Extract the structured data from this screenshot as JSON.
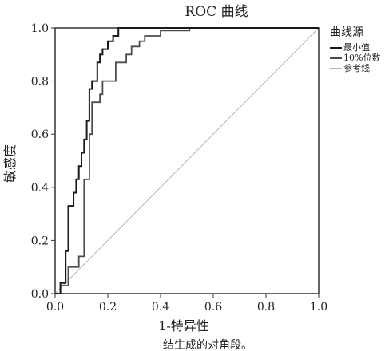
{
  "chart_data": {
    "type": "line",
    "title": "ROC 曲线",
    "xlabel": "1-特异性",
    "ylabel": "敏感度",
    "xlim": [
      0,
      1
    ],
    "ylim": [
      0,
      1
    ],
    "xticks": [
      "0.0",
      "0.2",
      "0.4",
      "0.6",
      "0.8",
      "1.0"
    ],
    "yticks": [
      "0.0",
      "0.2",
      "0.4",
      "0.6",
      "0.8",
      "1.0"
    ],
    "footnote": "结生成的对角段。",
    "legend": {
      "title": "曲线源",
      "position": "right"
    },
    "series": [
      {
        "name": "最小值",
        "color": "#1a1a1a",
        "x": [
          0.0,
          0.02,
          0.02,
          0.04,
          0.04,
          0.05,
          0.05,
          0.07,
          0.07,
          0.08,
          0.08,
          0.09,
          0.09,
          0.1,
          0.1,
          0.11,
          0.11,
          0.12,
          0.12,
          0.13,
          0.13,
          0.14,
          0.14,
          0.16,
          0.16,
          0.17,
          0.17,
          0.18,
          0.18,
          0.2,
          0.2,
          0.22,
          0.22,
          0.24,
          0.24,
          0.3,
          1.0
        ],
        "y": [
          0.0,
          0.0,
          0.04,
          0.04,
          0.16,
          0.16,
          0.33,
          0.33,
          0.38,
          0.38,
          0.43,
          0.43,
          0.48,
          0.48,
          0.53,
          0.53,
          0.58,
          0.58,
          0.65,
          0.65,
          0.77,
          0.77,
          0.8,
          0.8,
          0.87,
          0.87,
          0.9,
          0.9,
          0.92,
          0.92,
          0.95,
          0.95,
          0.97,
          0.97,
          1.0,
          1.0,
          1.0
        ]
      },
      {
        "name": "10%位数",
        "color": "#4d4d4d",
        "x": [
          0.0,
          0.02,
          0.02,
          0.05,
          0.05,
          0.09,
          0.09,
          0.11,
          0.11,
          0.13,
          0.13,
          0.14,
          0.14,
          0.17,
          0.17,
          0.18,
          0.18,
          0.23,
          0.23,
          0.27,
          0.27,
          0.29,
          0.29,
          0.32,
          0.32,
          0.34,
          0.34,
          0.37,
          0.37,
          0.4,
          0.4,
          0.48,
          0.48,
          0.51,
          0.51,
          1.0
        ],
        "y": [
          0.0,
          0.0,
          0.03,
          0.03,
          0.1,
          0.1,
          0.14,
          0.14,
          0.43,
          0.43,
          0.6,
          0.6,
          0.72,
          0.72,
          0.75,
          0.75,
          0.8,
          0.8,
          0.87,
          0.87,
          0.9,
          0.9,
          0.93,
          0.93,
          0.95,
          0.95,
          0.97,
          0.97,
          0.97,
          0.97,
          0.99,
          0.99,
          0.99,
          0.99,
          1.0,
          1.0
        ]
      },
      {
        "name": "参考线",
        "color": "#b3b3b3",
        "x": [
          0.0,
          1.0
        ],
        "y": [
          0.0,
          1.0
        ]
      }
    ]
  }
}
